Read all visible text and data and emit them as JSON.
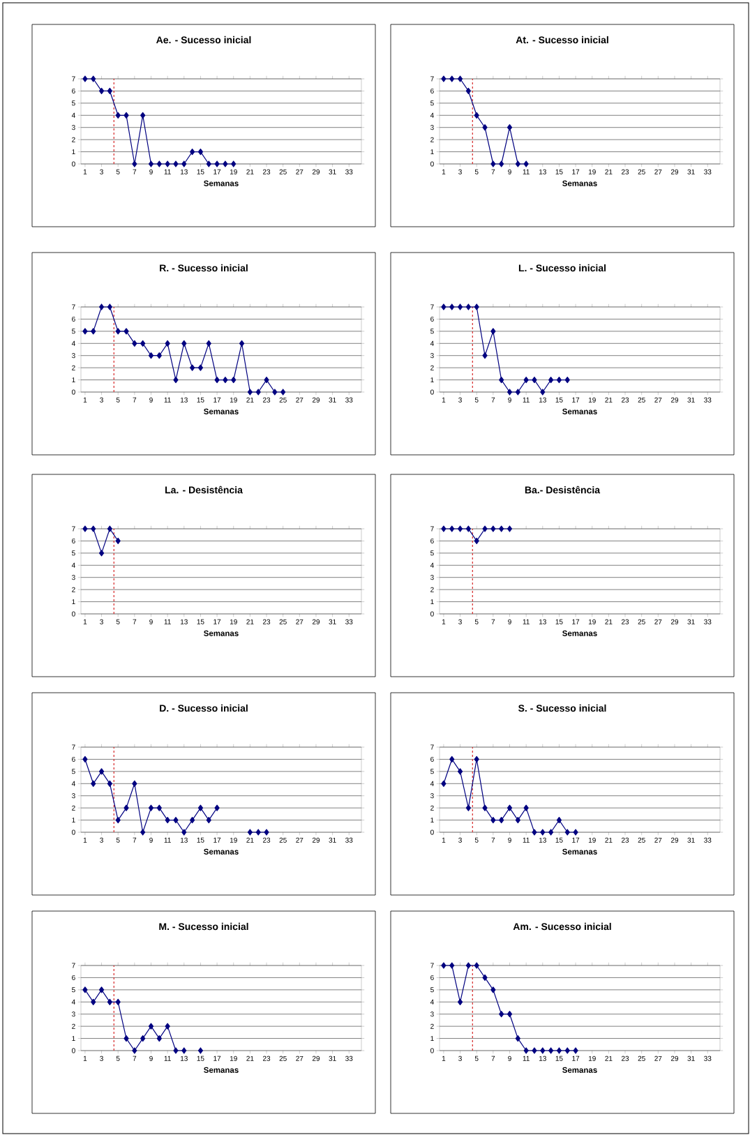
{
  "chart_data": [
    {
      "type": "line",
      "title": "Ae. - Sucesso inicial",
      "xlabel": "Semanas",
      "x": [
        1,
        2,
        3,
        4,
        5,
        6,
        7,
        8,
        9,
        10,
        11,
        12,
        13,
        14,
        15,
        16,
        17,
        18,
        19
      ],
      "values": [
        7,
        7,
        6,
        6,
        4,
        4,
        0,
        4,
        0,
        0,
        0,
        0,
        0,
        1,
        1,
        0,
        0,
        0,
        0
      ],
      "color": "#000080",
      "marker": "diamond",
      "grid": "y",
      "xlim": [
        0.5,
        34.5
      ],
      "xticks": [
        1,
        3,
        5,
        7,
        9,
        11,
        13,
        15,
        17,
        19,
        21,
        23,
        25,
        27,
        29,
        31,
        33
      ],
      "ylim": [
        0,
        7
      ],
      "yticks": [
        0,
        1,
        2,
        3,
        4,
        5,
        6,
        7
      ],
      "ref_lines": [
        {
          "axis": "x",
          "value": 4.5,
          "color": "#d62728",
          "line_style": "dashed"
        }
      ]
    },
    {
      "type": "line",
      "title": "At. - Sucesso inicial",
      "xlabel": "Semanas",
      "x": [
        1,
        2,
        3,
        4,
        5,
        6,
        7,
        8,
        9,
        10,
        11
      ],
      "values": [
        7,
        7,
        7,
        6,
        4,
        3,
        0,
        0,
        3,
        0,
        0
      ],
      "color": "#000080",
      "marker": "diamond",
      "grid": "y",
      "xlim": [
        0.5,
        34.5
      ],
      "xticks": [
        1,
        3,
        5,
        7,
        9,
        11,
        13,
        15,
        17,
        19,
        21,
        23,
        25,
        27,
        29,
        31,
        33
      ],
      "ylim": [
        0,
        7
      ],
      "yticks": [
        0,
        1,
        2,
        3,
        4,
        5,
        6,
        7
      ],
      "ref_lines": [
        {
          "axis": "x",
          "value": 4.5,
          "color": "#d62728",
          "line_style": "dashed"
        }
      ]
    },
    {
      "type": "line",
      "title": "R. - Sucesso inicial",
      "xlabel": "Semanas",
      "x": [
        1,
        2,
        3,
        4,
        5,
        6,
        7,
        8,
        9,
        10,
        11,
        12,
        13,
        14,
        15,
        16,
        17,
        18,
        19,
        20,
        21,
        22,
        23,
        24,
        25
      ],
      "values": [
        5,
        5,
        7,
        7,
        5,
        5,
        4,
        4,
        3,
        3,
        4,
        1,
        4,
        2,
        2,
        4,
        1,
        1,
        1,
        4,
        0,
        0,
        1,
        0,
        0
      ],
      "color": "#000080",
      "marker": "diamond",
      "grid": "y",
      "xlim": [
        0.5,
        34.5
      ],
      "xticks": [
        1,
        3,
        5,
        7,
        9,
        11,
        13,
        15,
        17,
        19,
        21,
        23,
        25,
        27,
        29,
        31,
        33
      ],
      "ylim": [
        0,
        7
      ],
      "yticks": [
        0,
        1,
        2,
        3,
        4,
        5,
        6,
        7
      ],
      "ref_lines": [
        {
          "axis": "x",
          "value": 4.5,
          "color": "#d62728",
          "line_style": "dashed"
        }
      ]
    },
    {
      "type": "line",
      "title": "L. - Sucesso inicial",
      "xlabel": "Semanas",
      "x": [
        1,
        2,
        3,
        4,
        5,
        6,
        7,
        8,
        9,
        10,
        11,
        12,
        13,
        14,
        15,
        16
      ],
      "values": [
        7,
        7,
        7,
        7,
        7,
        3,
        5,
        1,
        0,
        0,
        1,
        1,
        0,
        1,
        1,
        1
      ],
      "color": "#000080",
      "marker": "diamond",
      "grid": "y",
      "xlim": [
        0.5,
        34.5
      ],
      "xticks": [
        1,
        3,
        5,
        7,
        9,
        11,
        13,
        15,
        17,
        19,
        21,
        23,
        25,
        27,
        29,
        31,
        33
      ],
      "ylim": [
        0,
        7
      ],
      "yticks": [
        0,
        1,
        2,
        3,
        4,
        5,
        6,
        7
      ],
      "ref_lines": [
        {
          "axis": "x",
          "value": 4.5,
          "color": "#d62728",
          "line_style": "dashed"
        }
      ]
    },
    {
      "type": "line",
      "title": "La. - Desistência",
      "xlabel": "Semanas",
      "x": [
        1,
        2,
        3,
        4,
        5
      ],
      "values": [
        7,
        7,
        5,
        7,
        6
      ],
      "color": "#000080",
      "marker": "diamond",
      "grid": "y",
      "xlim": [
        0.5,
        34.5
      ],
      "xticks": [
        1,
        3,
        5,
        7,
        9,
        11,
        13,
        15,
        17,
        19,
        21,
        23,
        25,
        27,
        29,
        31,
        33
      ],
      "ylim": [
        0,
        7
      ],
      "yticks": [
        0,
        1,
        2,
        3,
        4,
        5,
        6,
        7
      ],
      "ref_lines": [
        {
          "axis": "x",
          "value": 4.5,
          "color": "#d62728",
          "line_style": "dashed"
        }
      ]
    },
    {
      "type": "line",
      "title": "Ba.- Desistência",
      "xlabel": "Semanas",
      "x": [
        1,
        2,
        3,
        4,
        5,
        6,
        7,
        8,
        9
      ],
      "values": [
        7,
        7,
        7,
        7,
        6,
        7,
        7,
        7,
        7
      ],
      "color": "#000080",
      "marker": "diamond",
      "grid": "y",
      "xlim": [
        0.5,
        34.5
      ],
      "xticks": [
        1,
        3,
        5,
        7,
        9,
        11,
        13,
        15,
        17,
        19,
        21,
        23,
        25,
        27,
        29,
        31,
        33
      ],
      "ylim": [
        0,
        7
      ],
      "yticks": [
        0,
        1,
        2,
        3,
        4,
        5,
        6,
        7
      ],
      "ref_lines": [
        {
          "axis": "x",
          "value": 4.5,
          "color": "#d62728",
          "line_style": "dashed"
        }
      ]
    },
    {
      "type": "line",
      "title": "D. - Sucesso inicial",
      "xlabel": "Semanas",
      "x": [
        1,
        2,
        3,
        4,
        5,
        6,
        7,
        8,
        9,
        10,
        11,
        12,
        13,
        14,
        15,
        16,
        17,
        18,
        19,
        20,
        21,
        22,
        23
      ],
      "values": [
        6,
        4,
        5,
        4,
        1,
        2,
        4,
        0,
        2,
        2,
        1,
        1,
        0,
        1,
        2,
        1,
        2,
        null,
        null,
        null,
        0,
        0,
        0
      ],
      "color": "#000080",
      "marker": "diamond",
      "grid": "y",
      "xlim": [
        0.5,
        34.5
      ],
      "xticks": [
        1,
        3,
        5,
        7,
        9,
        11,
        13,
        15,
        17,
        19,
        21,
        23,
        25,
        27,
        29,
        31,
        33
      ],
      "ylim": [
        0,
        7
      ],
      "yticks": [
        0,
        1,
        2,
        3,
        4,
        5,
        6,
        7
      ],
      "ref_lines": [
        {
          "axis": "x",
          "value": 4.5,
          "color": "#d62728",
          "line_style": "dashed"
        }
      ]
    },
    {
      "type": "line",
      "title": "S. - Sucesso inicial",
      "xlabel": "Semanas",
      "x": [
        1,
        2,
        3,
        4,
        5,
        6,
        7,
        8,
        9,
        10,
        11,
        12,
        13,
        14,
        15,
        16,
        17
      ],
      "values": [
        4,
        6,
        5,
        2,
        6,
        2,
        1,
        1,
        2,
        1,
        2,
        0,
        0,
        0,
        1,
        0,
        0
      ],
      "color": "#000080",
      "marker": "diamond",
      "grid": "y",
      "xlim": [
        0.5,
        34.5
      ],
      "xticks": [
        1,
        3,
        5,
        7,
        9,
        11,
        13,
        15,
        17,
        19,
        21,
        23,
        25,
        27,
        29,
        31,
        33
      ],
      "ylim": [
        0,
        7
      ],
      "yticks": [
        0,
        1,
        2,
        3,
        4,
        5,
        6,
        7
      ],
      "ref_lines": [
        {
          "axis": "x",
          "value": 4.5,
          "color": "#d62728",
          "line_style": "dashed"
        }
      ]
    },
    {
      "type": "line",
      "title": "M. - Sucesso inicial",
      "xlabel": "Semanas",
      "x": [
        1,
        2,
        3,
        4,
        5,
        6,
        7,
        8,
        9,
        10,
        11,
        12,
        13,
        14,
        15
      ],
      "values": [
        5,
        4,
        5,
        4,
        4,
        1,
        0,
        1,
        2,
        1,
        2,
        0,
        0,
        null,
        0
      ],
      "color": "#000080",
      "marker": "diamond",
      "grid": "y",
      "xlim": [
        0.5,
        34.5
      ],
      "xticks": [
        1,
        3,
        5,
        7,
        9,
        11,
        13,
        15,
        17,
        19,
        21,
        23,
        25,
        27,
        29,
        31,
        33
      ],
      "ylim": [
        0,
        7
      ],
      "yticks": [
        0,
        1,
        2,
        3,
        4,
        5,
        6,
        7
      ],
      "ref_lines": [
        {
          "axis": "x",
          "value": 4.5,
          "color": "#d62728",
          "line_style": "dashed"
        }
      ]
    },
    {
      "type": "line",
      "title": "Am. - Sucesso inicial",
      "xlabel": "Semanas",
      "x": [
        1,
        2,
        3,
        4,
        5,
        6,
        7,
        8,
        9,
        10,
        11,
        12,
        13,
        14,
        15,
        16,
        17
      ],
      "values": [
        7,
        7,
        4,
        7,
        7,
        6,
        5,
        3,
        3,
        1,
        0,
        0,
        0,
        0,
        0,
        0,
        0
      ],
      "color": "#000080",
      "marker": "diamond",
      "grid": "y",
      "xlim": [
        0.5,
        34.5
      ],
      "xticks": [
        1,
        3,
        5,
        7,
        9,
        11,
        13,
        15,
        17,
        19,
        21,
        23,
        25,
        27,
        29,
        31,
        33
      ],
      "ylim": [
        0,
        7
      ],
      "yticks": [
        0,
        1,
        2,
        3,
        4,
        5,
        6,
        7
      ],
      "ref_lines": [
        {
          "axis": "x",
          "value": 4.5,
          "color": "#d62728",
          "line_style": "dashed"
        }
      ]
    }
  ]
}
